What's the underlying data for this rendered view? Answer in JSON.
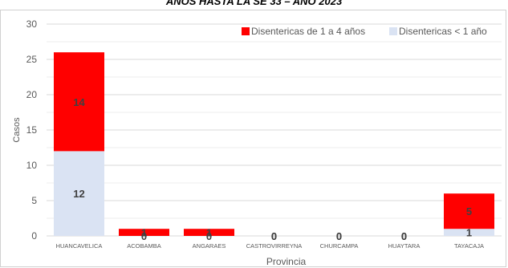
{
  "colors": {
    "series1": "#ff0000",
    "series2": "#dae3f3",
    "grid": "#d9d9d9",
    "text": "#595959",
    "label": "#404040"
  },
  "chart_data": {
    "type": "bar",
    "stacked": true,
    "title": "AÑOS HASTA LA SE 33 – AÑO 2023",
    "xlabel": "Provincia",
    "ylabel": "Casos",
    "ylim": [
      0,
      30
    ],
    "yticks": [
      0,
      5,
      10,
      15,
      20,
      25,
      30
    ],
    "grid": true,
    "legend_position": "top-right",
    "categories": [
      "HUANCAVELICA",
      "ACOBAMBA",
      "ANGARAES",
      "CASTROVIRREYNA",
      "CHURCAMPA",
      "HUAYTARA",
      "TAYACAJA"
    ],
    "series": [
      {
        "name": "Disentericas < 1 año",
        "values": [
          12,
          0,
          0,
          0,
          0,
          0,
          1
        ]
      },
      {
        "name": "Disentericas de 1 a 4 años",
        "values": [
          14,
          1,
          1,
          0,
          0,
          0,
          5
        ]
      }
    ],
    "legend_order": [
      1,
      0
    ],
    "data_labels": [
      [
        "12",
        "0",
        "0",
        "0",
        "0",
        "0",
        "1"
      ],
      [
        "14",
        "1",
        "1",
        "0",
        "0",
        "0",
        "5"
      ]
    ]
  }
}
